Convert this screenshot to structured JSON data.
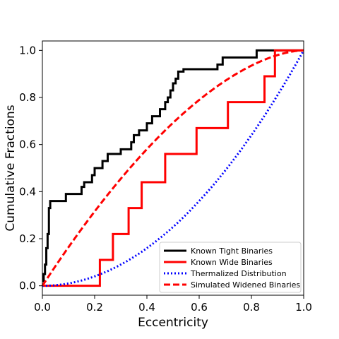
{
  "chart_data": {
    "type": "line",
    "xlabel": "Eccentricity",
    "ylabel": "Cumulative Fractions",
    "xlim": [
      0.0,
      1.0
    ],
    "ylim": [
      -0.04,
      1.04
    ],
    "xticks": [
      "0.0",
      "0.2",
      "0.4",
      "0.6",
      "0.8",
      "1.0"
    ],
    "yticks": [
      "0.0",
      "0.2",
      "0.4",
      "0.6",
      "0.8",
      "1.0"
    ],
    "legend_position": "lower-right",
    "series": [
      {
        "name": "Known Tight Binaries",
        "color": "#000000",
        "style": "solid",
        "step": true,
        "x": [
          0.0,
          0.005,
          0.01,
          0.015,
          0.02,
          0.025,
          0.03,
          0.09,
          0.15,
          0.16,
          0.19,
          0.2,
          0.23,
          0.25,
          0.3,
          0.34,
          0.35,
          0.37,
          0.4,
          0.42,
          0.45,
          0.47,
          0.48,
          0.49,
          0.5,
          0.51,
          0.52,
          0.54,
          0.55,
          0.56,
          0.57,
          0.67,
          0.69,
          0.7,
          0.82,
          1.0
        ],
        "y": [
          0.02,
          0.05,
          0.09,
          0.16,
          0.22,
          0.33,
          0.36,
          0.39,
          0.42,
          0.44,
          0.47,
          0.5,
          0.53,
          0.56,
          0.58,
          0.61,
          0.64,
          0.66,
          0.69,
          0.72,
          0.75,
          0.78,
          0.8,
          0.83,
          0.86,
          0.88,
          0.91,
          0.92,
          0.92,
          0.92,
          0.92,
          0.94,
          0.97,
          0.97,
          1.0,
          1.0
        ]
      },
      {
        "name": "Known Wide Binaries",
        "color": "#ff0000",
        "style": "solid",
        "step": true,
        "x": [
          0.0,
          0.22,
          0.27,
          0.33,
          0.38,
          0.47,
          0.59,
          0.71,
          0.85,
          0.89,
          1.0
        ],
        "y": [
          0.0,
          0.11,
          0.22,
          0.33,
          0.44,
          0.56,
          0.67,
          0.78,
          0.89,
          1.0,
          1.0
        ]
      },
      {
        "name": "Thermalized Distribution",
        "color": "#0000ff",
        "style": "dotted",
        "function": "e^2"
      },
      {
        "name": "Simulated Widened Binaries",
        "color": "#ff0000",
        "style": "dashed",
        "function": "1-(1-e)^1.7"
      }
    ]
  }
}
